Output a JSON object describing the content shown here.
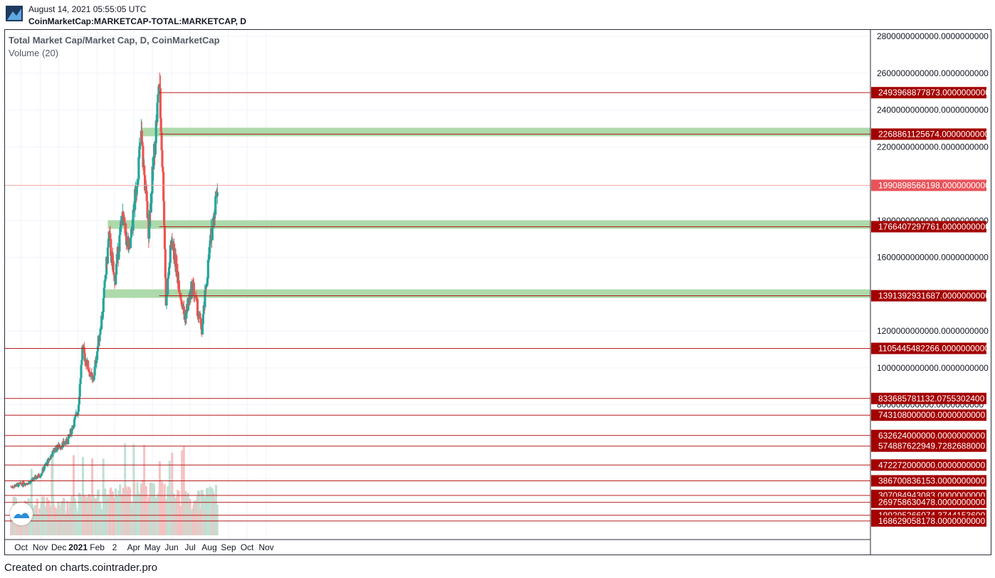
{
  "header": {
    "date": "August 14, 2021 05:55:05 UTC",
    "symbol": "CoinMarketCap:MARKETCAP-TOTAL:MARKETCAP, D"
  },
  "legend": {
    "title": "Total Market Cap/Market Cap, D, CoinMarketCap",
    "volume": "Volume (20)"
  },
  "footer": "Created on charts.cointrader.pro",
  "colors": {
    "up": "#26a69a",
    "down": "#ef5350",
    "level_line": "#b71c1c",
    "label_bg": "#a40000",
    "current_label_bg": "#e8545a",
    "zone": "#9fd49c",
    "vol_up": "#bfe1d4",
    "vol_down": "#f6c1c1"
  },
  "chart_data": {
    "type": "candlestick",
    "title": "Total Market Cap/Market Cap, D, CoinMarketCap",
    "y_axis_ticks": [
      "2800000000000.0000000000",
      "2600000000000.0000000000",
      "2400000000000.0000000000",
      "2200000000000.0000000000",
      "1800000000000.0000000000",
      "1600000000000.0000000000",
      "1200000000000.0000000000",
      "1000000000000.0000000000",
      "800000000000.0000000000"
    ],
    "x_axis_labels": [
      "Oct",
      "Nov",
      "Dec",
      "2021",
      "Feb",
      "2",
      "Apr",
      "May",
      "Jun",
      "Jul",
      "Aug",
      "Sep",
      "Oct",
      "Nov"
    ],
    "price_levels": [
      {
        "value": 2493968877873,
        "label": "2493968877873.0000000000"
      },
      {
        "value": 2268861125674,
        "label": "2268861125674.0000000000"
      },
      {
        "value": 1990898566198,
        "label": "1990898566198.0000000000",
        "current": true
      },
      {
        "value": 1766407297761,
        "label": "1766407297761.0000000000"
      },
      {
        "value": 1391392931687,
        "label": "1391392931687.0000000000"
      },
      {
        "value": 1105445482266,
        "label": "1105445482266.0000000000"
      },
      {
        "value": 833685781132,
        "label": "833685781132.0755302400"
      },
      {
        "value": 743108000000,
        "label": "743108000000.0000000000"
      },
      {
        "value": 632624000000,
        "label": "632624000000.0000000000"
      },
      {
        "value": 574887622949,
        "label": "574887622949.7282688000"
      },
      {
        "value": 472272000000,
        "label": "472272000000.0000000000"
      },
      {
        "value": 386700836153,
        "label": "386700836153.0000000000"
      },
      {
        "value": 307084943083,
        "label": "307084943083.0000000000"
      },
      {
        "value": 269758630478,
        "label": "269758630478.0000000000"
      },
      {
        "value": 199295266074,
        "label": "199295266074.3744153600"
      },
      {
        "value": 168629058178,
        "label": "168629058178.0000000000"
      }
    ],
    "support_zones": [
      {
        "value": 2268861125674,
        "from": "Apr 2021"
      },
      {
        "value": 1766407297761,
        "from": "Feb 2021"
      },
      {
        "value": 1391392931687,
        "from": "Feb 2021"
      }
    ],
    "key_points": [
      {
        "date": "2020-09-15",
        "close": 355000000000
      },
      {
        "date": "2020-10-15",
        "close": 380000000000
      },
      {
        "date": "2020-11-01",
        "close": 420000000000
      },
      {
        "date": "2020-11-25",
        "close": 560000000000
      },
      {
        "date": "2020-12-15",
        "close": 600000000000
      },
      {
        "date": "2021-01-01",
        "close": 770000000000
      },
      {
        "date": "2021-01-08",
        "close": 1100000000000
      },
      {
        "date": "2021-01-25",
        "close": 920000000000
      },
      {
        "date": "2021-02-10",
        "close": 1320000000000
      },
      {
        "date": "2021-02-20",
        "close": 1720000000000
      },
      {
        "date": "2021-03-01",
        "close": 1460000000000
      },
      {
        "date": "2021-03-13",
        "close": 1820000000000
      },
      {
        "date": "2021-03-25",
        "close": 1620000000000
      },
      {
        "date": "2021-04-13",
        "close": 2250000000000
      },
      {
        "date": "2021-04-25",
        "close": 1750000000000
      },
      {
        "date": "2021-05-12",
        "close": 2550000000000
      },
      {
        "date": "2021-05-19",
        "close": 1950000000000
      },
      {
        "date": "2021-05-23",
        "close": 1350000000000
      },
      {
        "date": "2021-06-01",
        "close": 1700000000000
      },
      {
        "date": "2021-06-22",
        "close": 1270000000000
      },
      {
        "date": "2021-07-05",
        "close": 1450000000000
      },
      {
        "date": "2021-07-20",
        "close": 1200000000000
      },
      {
        "date": "2021-08-01",
        "close": 1630000000000
      },
      {
        "date": "2021-08-14",
        "close": 1990000000000
      }
    ],
    "volume_label": "Volume (20)"
  }
}
